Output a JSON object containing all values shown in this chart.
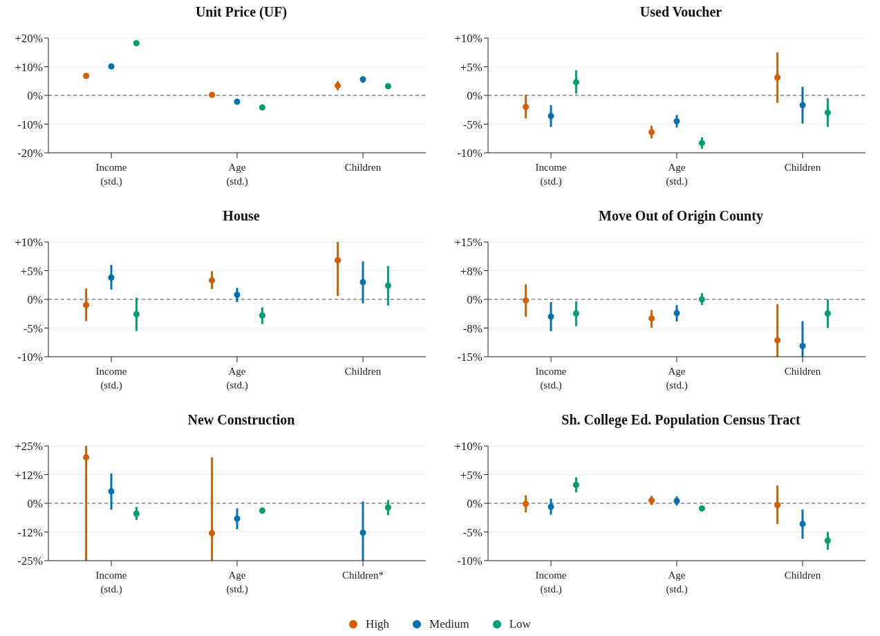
{
  "chart_data": [
    {
      "type": "scatter",
      "title": "Unit Price (UF)",
      "categories": [
        "Income (std.)",
        "Age (std.)",
        "Children"
      ],
      "ylim": [
        -20,
        20
      ],
      "yticks": [
        {
          "value": -20,
          "label": "-20%"
        },
        {
          "value": -10,
          "label": "-10%"
        },
        {
          "value": 0,
          "label": "0%"
        },
        {
          "value": 10,
          "label": "+10%"
        },
        {
          "value": 20,
          "label": "+20%"
        }
      ],
      "grid": "y",
      "marker": "circle",
      "legend": "bottom",
      "ref_lines": [
        {
          "axis": "y",
          "value": 0,
          "color": "#888888",
          "line_style": "dashed"
        }
      ],
      "series": [
        {
          "name": "High",
          "color": "#d55e00",
          "values": [
            6.8,
            0.2,
            3.4
          ],
          "errors": [
            null,
            null,
            [
              1.8,
              5
            ]
          ]
        },
        {
          "name": "Medium",
          "color": "#0072b2",
          "values": [
            10.1,
            -2.2,
            5.6
          ],
          "errors": [
            null,
            null,
            [
              4.4,
              6.6
            ]
          ]
        },
        {
          "name": "Low",
          "color": "#009e73",
          "values": [
            18.2,
            -4.2,
            3.2
          ],
          "errors": [
            null,
            null,
            null
          ]
        }
      ]
    },
    {
      "type": "scatter",
      "title": "Used Voucher",
      "categories": [
        "Income (std.)",
        "Age (std.)",
        "Children"
      ],
      "ylim": [
        -10,
        10
      ],
      "yticks": [
        {
          "value": -10,
          "label": "-10%"
        },
        {
          "value": -5,
          "label": "-5%"
        },
        {
          "value": 0,
          "label": "0%"
        },
        {
          "value": 5,
          "label": "+5%"
        },
        {
          "value": 10,
          "label": "+10%"
        }
      ],
      "grid": "y",
      "marker": "circle",
      "ref_lines": [
        {
          "axis": "y",
          "value": 0,
          "color": "#888888",
          "line_style": "dashed"
        }
      ],
      "series": [
        {
          "color": "#d55e00",
          "values": [
            -2,
            -6.4,
            3.1
          ],
          "errors": [
            [
              -4,
              0.1
            ],
            [
              -7.5,
              -5.3
            ],
            [
              -1.3,
              7.5
            ]
          ]
        },
        {
          "color": "#0072b2",
          "values": [
            -3.6,
            -4.5,
            -1.7
          ],
          "errors": [
            [
              -5.5,
              -1.7
            ],
            [
              -5.6,
              -3.4
            ],
            [
              -4.9,
              1.5
            ]
          ]
        },
        {
          "color": "#009e73",
          "values": [
            2.3,
            -8.3,
            -3
          ],
          "errors": [
            [
              0.3,
              4.4
            ],
            [
              -9.3,
              -7.3
            ],
            [
              -5.5,
              -0.5
            ]
          ]
        }
      ]
    },
    {
      "type": "scatter",
      "title": "House",
      "categories": [
        "Income (std.)",
        "Age (std.)",
        "Children"
      ],
      "ylim": [
        -10,
        10
      ],
      "yticks": [
        {
          "value": -10,
          "label": "-10%"
        },
        {
          "value": -5,
          "label": "-5%"
        },
        {
          "value": 0,
          "label": "0%"
        },
        {
          "value": 5,
          "label": "+5%"
        },
        {
          "value": 10,
          "label": "+10%"
        }
      ],
      "grid": "y",
      "marker": "circle",
      "ref_lines": [
        {
          "axis": "y",
          "value": 0,
          "color": "#888888",
          "line_style": "dashed"
        }
      ],
      "series": [
        {
          "color": "#d55e00",
          "values": [
            -1,
            3.3,
            6.8
          ],
          "errors": [
            [
              -3.8,
              1.9
            ],
            [
              1.8,
              4.9
            ],
            [
              0.6,
              10
            ]
          ]
        },
        {
          "color": "#0072b2",
          "values": [
            3.8,
            0.8,
            3
          ],
          "errors": [
            [
              1.7,
              6
            ],
            [
              -0.5,
              2
            ],
            [
              -0.7,
              6.6
            ]
          ]
        },
        {
          "color": "#009e73",
          "values": [
            -2.6,
            -2.8,
            2.4
          ],
          "errors": [
            [
              -5.5,
              0.3
            ],
            [
              -4.3,
              -1.4
            ],
            [
              -1.1,
              5.8
            ]
          ]
        }
      ]
    },
    {
      "type": "scatter",
      "title": "Move Out of Origin County",
      "categories": [
        "Income (std.)",
        "Age (std.)",
        "Children"
      ],
      "ylim": [
        -15,
        15
      ],
      "yticks": [
        {
          "value": -15,
          "label": "-15%"
        },
        {
          "value": -7.5,
          "label": "-8%"
        },
        {
          "value": 0,
          "label": "0%"
        },
        {
          "value": 7.5,
          "label": "+8%"
        },
        {
          "value": 15,
          "label": "+15%"
        }
      ],
      "grid": "y",
      "marker": "circle",
      "ref_lines": [
        {
          "axis": "y",
          "value": 0,
          "color": "#888888",
          "line_style": "dashed"
        }
      ],
      "series": [
        {
          "color": "#d55e00",
          "values": [
            -0.3,
            -5,
            -10.7
          ],
          "errors": [
            [
              -4.5,
              3.9
            ],
            [
              -7.4,
              -2.8
            ],
            [
              -15,
              -1.3
            ]
          ]
        },
        {
          "color": "#0072b2",
          "values": [
            -4.5,
            -3.6,
            -12.2
          ],
          "errors": [
            [
              -8.3,
              -0.7
            ],
            [
              -5.8,
              -1.5
            ],
            [
              -15,
              -5.7
            ]
          ]
        },
        {
          "color": "#009e73",
          "values": [
            -3.7,
            0,
            -3.7
          ],
          "errors": [
            [
              -7,
              -0.5
            ],
            [
              -1.5,
              1.6
            ],
            [
              -7.5,
              0
            ]
          ]
        }
      ]
    },
    {
      "type": "scatter",
      "title": "New Construction",
      "categories": [
        "Income (std.)",
        "Age (std.)",
        "Children*"
      ],
      "ylim": [
        -25,
        25
      ],
      "yticks": [
        {
          "value": -25,
          "label": "-25%"
        },
        {
          "value": -12.5,
          "label": "-12%"
        },
        {
          "value": 0,
          "label": "0%"
        },
        {
          "value": 12.5,
          "label": "+12%"
        },
        {
          "value": 25,
          "label": "+25%"
        }
      ],
      "grid": "y",
      "marker": "circle",
      "ref_lines": [
        {
          "axis": "y",
          "value": 0,
          "color": "#888888",
          "line_style": "dashed"
        }
      ],
      "series": [
        {
          "color": "#d55e00",
          "values": [
            20,
            -13,
            null
          ],
          "errors": [
            [
              -25,
              25
            ],
            [
              -25,
              20
            ],
            null
          ]
        },
        {
          "color": "#0072b2",
          "values": [
            5.2,
            -6.7,
            -12.8
          ],
          "errors": [
            [
              -2.8,
              13
            ],
            [
              -11.3,
              -2.2
            ],
            [
              -25,
              0.8
            ]
          ]
        },
        {
          "color": "#009e73",
          "values": [
            -4.5,
            -3.2,
            -1.8
          ],
          "errors": [
            [
              -7.3,
              -1.6
            ],
            null,
            [
              -5.2,
              1.4
            ]
          ]
        }
      ]
    },
    {
      "type": "scatter",
      "title": "Sh. College Ed. Population Census Tract",
      "categories": [
        "Income (std.)",
        "Age (std.)",
        "Children"
      ],
      "ylim": [
        -10,
        10
      ],
      "yticks": [
        {
          "value": -10,
          "label": "-10%"
        },
        {
          "value": -5,
          "label": "-5%"
        },
        {
          "value": 0,
          "label": "0%"
        },
        {
          "value": 5,
          "label": "+5%"
        },
        {
          "value": 10,
          "label": "+10%"
        }
      ],
      "grid": "y",
      "marker": "circle",
      "ref_lines": [
        {
          "axis": "y",
          "value": 0,
          "color": "#888888",
          "line_style": "dashed"
        }
      ],
      "series": [
        {
          "color": "#d55e00",
          "values": [
            -0.1,
            0.5,
            -0.3
          ],
          "errors": [
            [
              -1.6,
              1.4
            ],
            [
              -0.3,
              1.3
            ],
            [
              -3.6,
              3.1
            ]
          ]
        },
        {
          "color": "#0072b2",
          "values": [
            -0.6,
            0.4,
            -3.6
          ],
          "errors": [
            [
              -2,
              0.8
            ],
            [
              -0.4,
              1.2
            ],
            [
              -6.2,
              -1.1
            ]
          ]
        },
        {
          "color": "#009e73",
          "values": [
            3.2,
            -0.9,
            -6.5
          ],
          "errors": [
            [
              1.9,
              4.5
            ],
            [
              -1.4,
              -0.4
            ],
            [
              -8.1,
              -5
            ]
          ]
        }
      ]
    }
  ]
}
